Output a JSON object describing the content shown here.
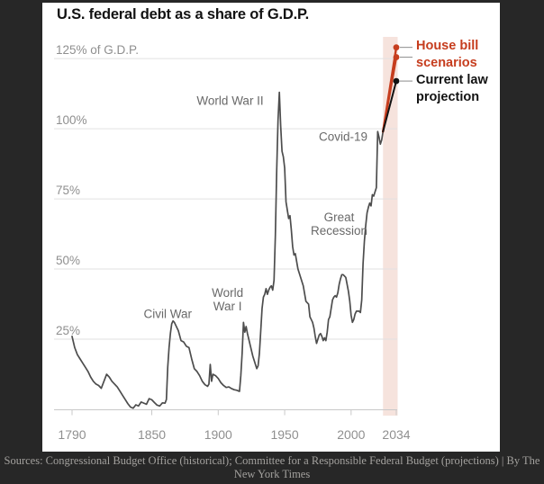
{
  "page": {
    "background": "#272727",
    "panel_background": "#ffffff"
  },
  "chart_data": {
    "type": "line",
    "title": "U.S. federal debt as a share of G.D.P.",
    "xlabel": "",
    "ylabel": "% of G.D.P.",
    "xlim": [
      1790,
      2034
    ],
    "ylim": [
      0,
      143
    ],
    "grid": "horizontal",
    "legend_position": "right-of-projection-endpoints",
    "x_ticks": [
      1790,
      1850,
      1900,
      1950,
      2000,
      2034
    ],
    "x_tick_labels": [
      "1790",
      "1850",
      "1900",
      "1950",
      "2000",
      "2034"
    ],
    "y_ticks": [
      25,
      50,
      75,
      100,
      125
    ],
    "y_tick_labels": [
      "25%",
      "50%",
      "75%",
      "100%",
      "125% of G.D.P."
    ],
    "colors": {
      "historical_line": "#4d4d4d",
      "current_law_line": "#121212",
      "house_bill_line": "#c63d1e",
      "projection_band": "#f6e3dd",
      "gridline": "#e2e2e2",
      "axis": "#c9c9c9",
      "tick_label": "#8f8f8f",
      "annotation": "#696969",
      "leader": "#8c8c8c"
    },
    "projection_band": {
      "start": 2024,
      "end": 2034
    },
    "series": [
      {
        "name": "Historical debt as share of G.D.P.",
        "color": "#4d4d4d",
        "width": 1.7,
        "marker": false,
        "points": [
          [
            1790,
            26
          ],
          [
            1792,
            22
          ],
          [
            1794,
            19.5
          ],
          [
            1796,
            18
          ],
          [
            1798,
            16.5
          ],
          [
            1800,
            15
          ],
          [
            1802,
            13.5
          ],
          [
            1804,
            11.5
          ],
          [
            1806,
            10
          ],
          [
            1808,
            9
          ],
          [
            1810,
            8.5
          ],
          [
            1812,
            7.5
          ],
          [
            1814,
            10
          ],
          [
            1816,
            12.5
          ],
          [
            1818,
            11.5
          ],
          [
            1820,
            10
          ],
          [
            1822,
            9
          ],
          [
            1824,
            8
          ],
          [
            1826,
            6.5
          ],
          [
            1828,
            5
          ],
          [
            1830,
            3.5
          ],
          [
            1832,
            2
          ],
          [
            1834,
            0.8
          ],
          [
            1836,
            0.4
          ],
          [
            1838,
            1.6
          ],
          [
            1840,
            1.2
          ],
          [
            1842,
            2.6
          ],
          [
            1844,
            2.2
          ],
          [
            1846,
            1.8
          ],
          [
            1848,
            3.8
          ],
          [
            1850,
            3.4
          ],
          [
            1852,
            2.4
          ],
          [
            1854,
            1.5
          ],
          [
            1856,
            1.2
          ],
          [
            1858,
            2.3
          ],
          [
            1860,
            2.2
          ],
          [
            1861,
            3.5
          ],
          [
            1862,
            15
          ],
          [
            1863,
            22
          ],
          [
            1864,
            27
          ],
          [
            1865,
            30.5
          ],
          [
            1866,
            31.5
          ],
          [
            1867,
            31
          ],
          [
            1868,
            30
          ],
          [
            1870,
            28
          ],
          [
            1872,
            24.5
          ],
          [
            1874,
            24
          ],
          [
            1876,
            22.5
          ],
          [
            1878,
            22
          ],
          [
            1880,
            18
          ],
          [
            1882,
            14.5
          ],
          [
            1884,
            13.5
          ],
          [
            1886,
            12
          ],
          [
            1888,
            10
          ],
          [
            1890,
            8.8
          ],
          [
            1892,
            8.2
          ],
          [
            1893,
            9
          ],
          [
            1894,
            16
          ],
          [
            1895,
            10
          ],
          [
            1896,
            12.5
          ],
          [
            1898,
            12
          ],
          [
            1900,
            11
          ],
          [
            1902,
            9.5
          ],
          [
            1904,
            8.5
          ],
          [
            1906,
            7.8
          ],
          [
            1908,
            8
          ],
          [
            1910,
            7.4
          ],
          [
            1912,
            7
          ],
          [
            1914,
            6.8
          ],
          [
            1916,
            6.4
          ],
          [
            1917,
            12
          ],
          [
            1918,
            20
          ],
          [
            1919,
            31
          ],
          [
            1920,
            27.5
          ],
          [
            1921,
            29.5
          ],
          [
            1922,
            27
          ],
          [
            1924,
            23
          ],
          [
            1926,
            19
          ],
          [
            1928,
            16
          ],
          [
            1929,
            14.5
          ],
          [
            1930,
            15.5
          ],
          [
            1931,
            20
          ],
          [
            1932,
            28
          ],
          [
            1933,
            36
          ],
          [
            1934,
            40
          ],
          [
            1935,
            41
          ],
          [
            1936,
            43
          ],
          [
            1937,
            41
          ],
          [
            1938,
            42.5
          ],
          [
            1939,
            43.5
          ],
          [
            1940,
            44
          ],
          [
            1941,
            42.5
          ],
          [
            1942,
            46
          ],
          [
            1943,
            62
          ],
          [
            1944,
            85
          ],
          [
            1945,
            103
          ],
          [
            1946,
            113
          ],
          [
            1947,
            101
          ],
          [
            1948,
            92
          ],
          [
            1949,
            90
          ],
          [
            1950,
            86
          ],
          [
            1951,
            74
          ],
          [
            1952,
            71
          ],
          [
            1953,
            68
          ],
          [
            1954,
            69
          ],
          [
            1955,
            64
          ],
          [
            1956,
            58
          ],
          [
            1957,
            55
          ],
          [
            1958,
            55.5
          ],
          [
            1960,
            50
          ],
          [
            1962,
            47
          ],
          [
            1964,
            44
          ],
          [
            1966,
            38.5
          ],
          [
            1968,
            37.5
          ],
          [
            1969,
            33
          ],
          [
            1970,
            32
          ],
          [
            1971,
            31
          ],
          [
            1972,
            29
          ],
          [
            1973,
            26
          ],
          [
            1974,
            23.5
          ],
          [
            1975,
            25
          ],
          [
            1976,
            26.5
          ],
          [
            1977,
            27
          ],
          [
            1978,
            26
          ],
          [
            1979,
            24.5
          ],
          [
            1980,
            25.5
          ],
          [
            1981,
            24.5
          ],
          [
            1982,
            27.5
          ],
          [
            1983,
            32
          ],
          [
            1984,
            33
          ],
          [
            1985,
            36
          ],
          [
            1986,
            39
          ],
          [
            1987,
            40
          ],
          [
            1988,
            40.5
          ],
          [
            1989,
            40
          ],
          [
            1990,
            41.5
          ],
          [
            1991,
            44.5
          ],
          [
            1992,
            46.5
          ],
          [
            1993,
            48
          ],
          [
            1994,
            48
          ],
          [
            1995,
            47.5
          ],
          [
            1996,
            47
          ],
          [
            1997,
            44.5
          ],
          [
            1998,
            42
          ],
          [
            1999,
            38.5
          ],
          [
            2000,
            33.5
          ],
          [
            2001,
            31
          ],
          [
            2002,
            32
          ],
          [
            2003,
            34
          ],
          [
            2004,
            35
          ],
          [
            2005,
            35
          ],
          [
            2006,
            35
          ],
          [
            2007,
            34.5
          ],
          [
            2008,
            39
          ],
          [
            2009,
            52
          ],
          [
            2010,
            60
          ],
          [
            2011,
            65.5
          ],
          [
            2012,
            70
          ],
          [
            2013,
            72
          ],
          [
            2014,
            73.5
          ],
          [
            2015,
            72.5
          ],
          [
            2016,
            76.5
          ],
          [
            2017,
            76
          ],
          [
            2018,
            77.5
          ],
          [
            2019,
            79
          ],
          [
            2020,
            99
          ],
          [
            2021,
            97
          ],
          [
            2022,
            94.5
          ],
          [
            2023,
            96
          ],
          [
            2024,
            99
          ]
        ]
      },
      {
        "name": "House bill scenario (high)",
        "color": "#c63d1e",
        "width": 2.4,
        "marker": true,
        "leader": true,
        "points": [
          [
            2024,
            99
          ],
          [
            2034,
            129
          ]
        ]
      },
      {
        "name": "House bill scenario (low)",
        "color": "#c63d1e",
        "width": 2.4,
        "marker": true,
        "leader": true,
        "points": [
          [
            2024,
            99
          ],
          [
            2034,
            125.5
          ]
        ]
      },
      {
        "name": "Current law projection",
        "color": "#121212",
        "width": 2,
        "marker": true,
        "leader": true,
        "points": [
          [
            2024,
            99
          ],
          [
            2034,
            117
          ]
        ]
      }
    ],
    "annotations": [
      {
        "text": "Civil War",
        "year": 1862,
        "pct": 34
      },
      {
        "text": "World\nWar I",
        "year": 1907,
        "pct": 39
      },
      {
        "text": "World War II",
        "year": 1909,
        "pct": 110
      },
      {
        "text": "Great\nRecession",
        "year": 1991,
        "pct": 66
      },
      {
        "text": "Covid-19",
        "year": 1994,
        "pct": 97
      }
    ],
    "legend": [
      {
        "label": "House bill scenarios",
        "color": "#c63d1e"
      },
      {
        "label": "Current law projection",
        "color": "#121212"
      }
    ]
  },
  "source": {
    "line1": "Sources: Congressional Budget Office (historical); Committee for a Responsible Federal Budget (projections) | By The",
    "line2": "New York Times"
  }
}
